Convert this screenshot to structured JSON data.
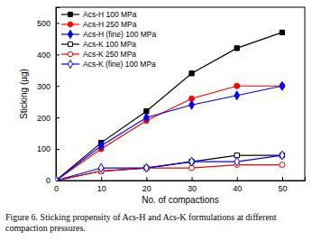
{
  "chart_data": {
    "type": "line",
    "title": "Figure 6. Sticking propensity of Acs-H and Acs-K formulations at different compaction pressures.",
    "x_label": "No. of compactions",
    "y_label": "Sticking (µg)",
    "x": [
      0,
      10,
      20,
      30,
      40,
      50
    ],
    "xlim": [
      0,
      55
    ],
    "xticks": [
      0,
      10,
      20,
      30,
      40,
      50
    ],
    "ylim": [
      0,
      550
    ],
    "yticks": [
      0,
      100,
      200,
      300,
      400,
      500
    ],
    "legend": "upper left",
    "series": [
      {
        "name": "Acs-H 100 MPa",
        "color": "#000000",
        "marker": "square",
        "line_style": "solid",
        "values": [
          0,
          120,
          220,
          340,
          420,
          470
        ]
      },
      {
        "name": "Acs-H 250 MPa",
        "color": "#ff0000",
        "marker": "circle",
        "line_style": "solid",
        "values": [
          0,
          100,
          190,
          260,
          300,
          300
        ]
      },
      {
        "name": "Acs-H (fine) 100 MPa",
        "color": "#0000ff",
        "marker": "diamond",
        "line_style": "solid",
        "values": [
          0,
          110,
          200,
          240,
          270,
          300
        ]
      },
      {
        "name": "Acs-K 100 MPa",
        "color": "#000000",
        "marker": "square-open",
        "line_style": "solid",
        "values": [
          0,
          30,
          40,
          60,
          80,
          80
        ]
      },
      {
        "name": "Acs-K 250 MPa",
        "color": "#ff0000",
        "marker": "circle-open",
        "line_style": "solid",
        "values": [
          0,
          30,
          40,
          40,
          50,
          50
        ]
      },
      {
        "name": "Acs-K (fine) 100 MPa",
        "color": "#0000ff",
        "marker": "diamond-open",
        "line_style": "solid",
        "values": [
          0,
          40,
          40,
          60,
          60,
          80
        ]
      }
    ]
  }
}
